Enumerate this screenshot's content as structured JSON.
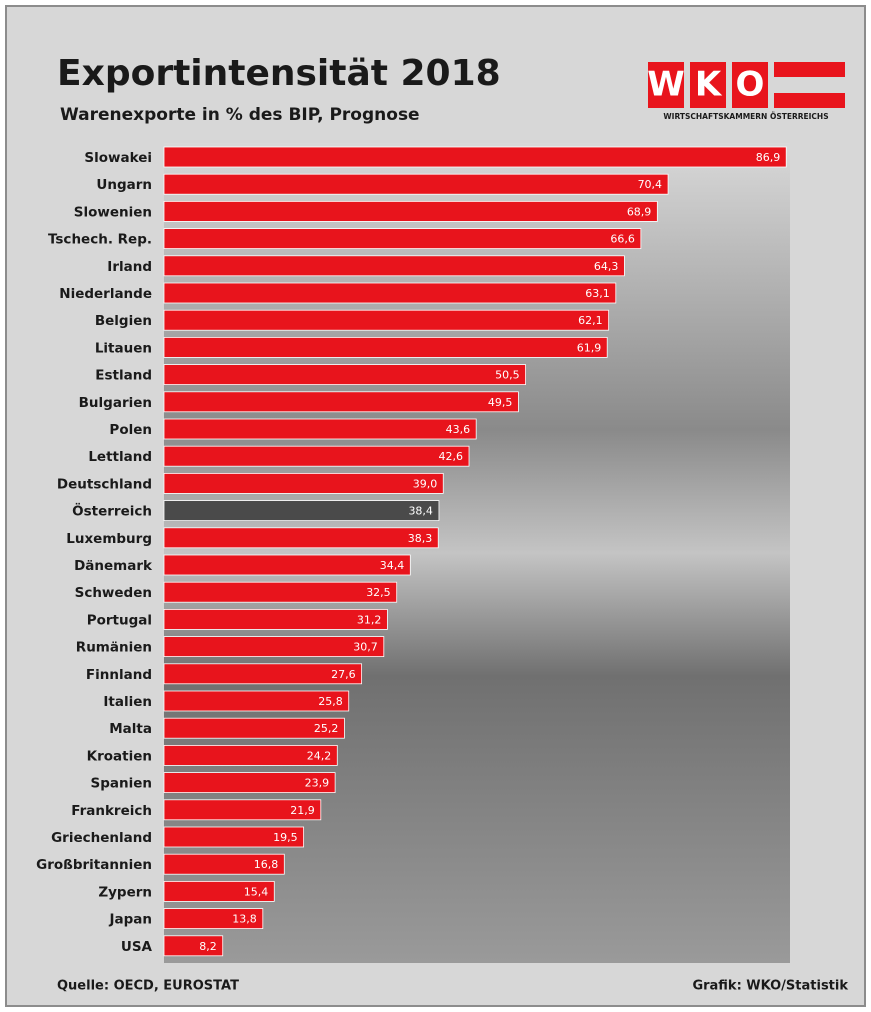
{
  "chart_data": {
    "type": "bar",
    "orientation": "horizontal",
    "title": "Exportintensität 2018",
    "subtitle": "Warenexporte in % des BIP, Prognose",
    "source": "Quelle: OECD, EUROSTAT",
    "credit": "Grafik: WKO/Statistik",
    "logo": {
      "letters": [
        "W",
        "K",
        "O"
      ],
      "tagline": "WIRTSCHAFTSKAMMERN ÖSTERREICHS"
    },
    "categories": [
      "Slowakei",
      "Ungarn",
      "Slowenien",
      "Tschech. Rep.",
      "Irland",
      "Niederlande",
      "Belgien",
      "Litauen",
      "Estland",
      "Bulgarien",
      "Polen",
      "Lettland",
      "Deutschland",
      "Österreich",
      "Luxemburg",
      "Dänemark",
      "Schweden",
      "Portugal",
      "Rumänien",
      "Finnland",
      "Italien",
      "Malta",
      "Kroatien",
      "Spanien",
      "Frankreich",
      "Griechenland",
      "Großbritannien",
      "Zypern",
      "Japan",
      "USA"
    ],
    "values": [
      86.9,
      70.4,
      68.9,
      66.6,
      64.3,
      63.1,
      62.1,
      61.9,
      50.5,
      49.5,
      43.6,
      42.6,
      39.0,
      38.4,
      38.3,
      34.4,
      32.5,
      31.2,
      30.7,
      27.6,
      25.8,
      25.2,
      24.2,
      23.9,
      21.9,
      19.5,
      16.8,
      15.4,
      13.8,
      8.2
    ],
    "value_labels": [
      "86,9",
      "70,4",
      "68,9",
      "66,6",
      "64,3",
      "63,1",
      "62,1",
      "61,9",
      "50,5",
      "49,5",
      "43,6",
      "42,6",
      "39,0",
      "38,4",
      "38,3",
      "34,4",
      "32,5",
      "31,2",
      "30,7",
      "27,6",
      "25,8",
      "25,2",
      "24,2",
      "23,9",
      "21,9",
      "19,5",
      "16,8",
      "15,4",
      "13,8",
      "8,2"
    ],
    "colors": [
      "#e8141c",
      "#e8141c",
      "#e8141c",
      "#e8141c",
      "#e8141c",
      "#e8141c",
      "#e8141c",
      "#e8141c",
      "#e8141c",
      "#e8141c",
      "#e8141c",
      "#e8141c",
      "#e8141c",
      "#4a4a4a",
      "#e8141c",
      "#e8141c",
      "#e8141c",
      "#e8141c",
      "#e8141c",
      "#e8141c",
      "#e8141c",
      "#e8141c",
      "#e8141c",
      "#e8141c",
      "#e8141c",
      "#e8141c",
      "#e8141c",
      "#e8141c",
      "#e8141c",
      "#e8141c"
    ]
  }
}
